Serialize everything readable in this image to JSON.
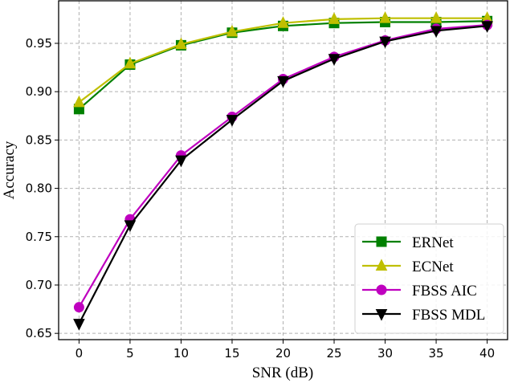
{
  "chart_data": {
    "type": "line",
    "title": "",
    "xlabel": "SNR (dB)",
    "ylabel": "Accuracy",
    "x": [
      0,
      5,
      10,
      15,
      20,
      25,
      30,
      35,
      40
    ],
    "xlim": [
      -2,
      42
    ],
    "ylim": [
      0.6435,
      0.994
    ],
    "xticks": [
      0,
      5,
      10,
      15,
      20,
      25,
      30,
      35,
      40
    ],
    "yticks": [
      0.65,
      0.7,
      0.75,
      0.8,
      0.85,
      0.9,
      0.95
    ],
    "ytick_labels": [
      "0.65",
      "0.70",
      "0.75",
      "0.80",
      "0.85",
      "0.90",
      "0.95"
    ],
    "grid": true,
    "legend_position": "lower right",
    "series": [
      {
        "name": "ERNet",
        "color": "#008000",
        "marker": "square",
        "values": [
          0.882,
          0.928,
          0.948,
          0.961,
          0.968,
          0.971,
          0.972,
          0.972,
          0.973
        ]
      },
      {
        "name": "ECNet",
        "color": "#bfbf00",
        "marker": "triangle-up",
        "values": [
          0.889,
          0.929,
          0.949,
          0.962,
          0.971,
          0.975,
          0.976,
          0.976,
          0.976
        ]
      },
      {
        "name": "FBSS AIC",
        "color": "#bf00bf",
        "marker": "circle",
        "values": [
          0.677,
          0.768,
          0.834,
          0.874,
          0.913,
          0.936,
          0.953,
          0.965,
          0.969
        ]
      },
      {
        "name": "FBSS MDL",
        "color": "#000000",
        "marker": "triangle-down",
        "values": [
          0.66,
          0.762,
          0.829,
          0.871,
          0.911,
          0.934,
          0.952,
          0.963,
          0.968
        ]
      }
    ]
  }
}
